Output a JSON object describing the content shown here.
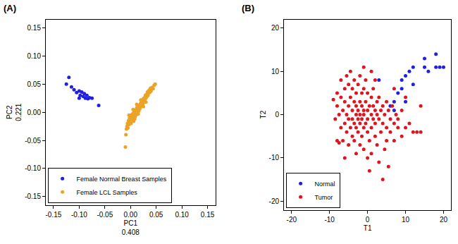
{
  "chart_data": [
    {
      "type": "scatter",
      "title": "(A)",
      "xlabel": "PC1\n0.408",
      "ylabel": "PC2\n0.221",
      "xlim": [
        -0.165,
        0.165
      ],
      "xticks": [
        -0.15,
        {
          "value": -0.1,
          "label": "-0.10"
        },
        -0.05,
        {
          "value": 0,
          "label": "0.00"
        },
        0.05,
        {
          "value": 0.1,
          "label": "0.10"
        },
        0.15
      ],
      "ylim": [
        -0.165,
        0.165
      ],
      "yticks": [
        -0.15,
        {
          "value": -0.1,
          "label": "-0.10"
        },
        -0.05,
        {
          "value": 0,
          "label": "0.00"
        },
        0.05,
        {
          "value": 0.1,
          "label": "0.10"
        },
        0.15
      ],
      "grid": false,
      "legend": "bottom left",
      "marker": "circle",
      "series": [
        {
          "name": "Female Normal Breast Samples",
          "color": "#1f1fe6",
          "values": [
            [
              -0.125,
              0.05
            ],
            [
              -0.12,
              0.062
            ],
            [
              -0.115,
              0.045
            ],
            [
              -0.11,
              0.04
            ],
            [
              -0.105,
              0.035
            ],
            [
              -0.1,
              0.038
            ],
            [
              -0.098,
              0.03
            ],
            [
              -0.095,
              0.036
            ],
            [
              -0.092,
              0.028
            ],
            [
              -0.09,
              0.033
            ],
            [
              -0.088,
              0.025
            ],
            [
              -0.085,
              0.03
            ],
            [
              -0.083,
              0.024
            ],
            [
              -0.08,
              0.026
            ],
            [
              -0.075,
              0.025
            ],
            [
              -0.062,
              0.012
            ],
            [
              -0.1,
              0.025
            ]
          ]
        },
        {
          "name": "Female LCL Samples",
          "color": "#e9a427",
          "values": [
            [
              -0.008,
              -0.03
            ],
            [
              -0.007,
              -0.025
            ],
            [
              -0.006,
              -0.02
            ],
            [
              -0.005,
              -0.028
            ],
            [
              -0.004,
              -0.015
            ],
            [
              -0.003,
              -0.022
            ],
            [
              -0.002,
              -0.01
            ],
            [
              -0.001,
              -0.018
            ],
            [
              0,
              -0.012
            ],
            [
              0,
              -0.005
            ],
            [
              0.001,
              -0.02
            ],
            [
              0.002,
              -0.008
            ],
            [
              0.003,
              -0.014
            ],
            [
              0.004,
              -0.003
            ],
            [
              0.005,
              -0.01
            ],
            [
              0.006,
              -0.001
            ],
            [
              0.006,
              -0.016
            ],
            [
              0.007,
              -0.006
            ],
            [
              0.008,
              0.002
            ],
            [
              0.009,
              -0.008
            ],
            [
              0.01,
              0.004
            ],
            [
              0.01,
              -0.002
            ],
            [
              0.011,
              0
            ],
            [
              0.012,
              0.008
            ],
            [
              0.013,
              -0.004
            ],
            [
              0.014,
              0.005
            ],
            [
              0.015,
              0.01
            ],
            [
              0.016,
              0.002
            ],
            [
              0.017,
              0.012
            ],
            [
              0.018,
              0.006
            ],
            [
              0.019,
              0.015
            ],
            [
              0.02,
              0.01
            ],
            [
              0.021,
              0.018
            ],
            [
              0.022,
              0.012
            ],
            [
              0.023,
              0.02
            ],
            [
              0.024,
              0.014
            ],
            [
              0.025,
              0.024
            ],
            [
              0.026,
              0.018
            ],
            [
              0.027,
              0.026
            ],
            [
              0.028,
              0.02
            ],
            [
              0.029,
              0.03
            ],
            [
              0.03,
              0.025
            ],
            [
              0.031,
              0.032
            ],
            [
              0.032,
              0.028
            ],
            [
              0.033,
              0.036
            ],
            [
              0.034,
              0.03
            ],
            [
              0.035,
              0.038
            ],
            [
              0.036,
              0.034
            ],
            [
              0.037,
              0.04
            ],
            [
              0.038,
              0.036
            ],
            [
              0.039,
              0.043
            ],
            [
              0.04,
              0.038
            ],
            [
              0.042,
              0.044
            ],
            [
              0.044,
              0.042
            ],
            [
              0.046,
              0.048
            ],
            [
              0.048,
              0.05
            ],
            [
              -0.01,
              -0.062
            ],
            [
              -0.009,
              -0.04
            ],
            [
              0.005,
              0.005
            ],
            [
              0.015,
              -0.003
            ],
            [
              0.02,
              0.022
            ],
            [
              0.03,
              0.018
            ],
            [
              -0.003,
              -0.005
            ],
            [
              0.008,
              -0.012
            ],
            [
              0.012,
              0.014
            ],
            [
              0.025,
              0.01
            ]
          ]
        }
      ]
    },
    {
      "type": "scatter",
      "title": "(B)",
      "xlabel": "T1",
      "ylabel": "T2",
      "xlim": [
        -22,
        22
      ],
      "xticks": [
        -20,
        -10,
        0,
        10,
        20
      ],
      "ylim": [
        -22,
        22
      ],
      "yticks": [
        -20,
        -10,
        0,
        10,
        20
      ],
      "grid": false,
      "legend": "bottom left",
      "marker": "circle",
      "series": [
        {
          "name": "Normal",
          "color": "#1f1fe6",
          "values": [
            [
              6,
              2
            ],
            [
              7,
              3
            ],
            [
              8,
              5
            ],
            [
              9,
              6
            ],
            [
              10,
              9
            ],
            [
              10,
              3
            ],
            [
              11,
              10
            ],
            [
              12,
              11
            ],
            [
              9,
              8
            ],
            [
              15,
              13
            ],
            [
              15,
              11
            ],
            [
              16,
              10
            ],
            [
              18,
              14
            ],
            [
              18,
              11
            ],
            [
              19,
              11
            ],
            [
              20,
              11
            ],
            [
              7,
              1
            ],
            [
              12,
              7
            ],
            [
              3,
              8
            ]
          ]
        },
        {
          "name": "Tumor",
          "color": "#e0141e",
          "values": [
            [
              -9,
              3.5
            ],
            [
              -8.5,
              -1
            ],
            [
              -8,
              5
            ],
            [
              -8,
              2
            ],
            [
              -7.5,
              -6.5
            ],
            [
              -7.5,
              0
            ],
            [
              -7,
              4
            ],
            [
              -7,
              -3
            ],
            [
              -7,
              8
            ],
            [
              -6.5,
              1
            ],
            [
              -6.5,
              -6
            ],
            [
              -6,
              6
            ],
            [
              -6,
              -2
            ],
            [
              -6,
              3
            ],
            [
              -5.5,
              9
            ],
            [
              -5.5,
              -4
            ],
            [
              -5.5,
              0
            ],
            [
              -5,
              2
            ],
            [
              -5,
              7
            ],
            [
              -5,
              -7
            ],
            [
              -5,
              -1
            ],
            [
              -4.5,
              4
            ],
            [
              -4.5,
              -3
            ],
            [
              -4.5,
              10
            ],
            [
              -4,
              1
            ],
            [
              -4,
              -5
            ],
            [
              -4,
              6
            ],
            [
              -4,
              -1
            ],
            [
              -3.5,
              3
            ],
            [
              -3.5,
              -2
            ],
            [
              -3.5,
              8
            ],
            [
              -3.5,
              -6
            ],
            [
              -3,
              0
            ],
            [
              -3,
              5
            ],
            [
              -3,
              -3
            ],
            [
              -3,
              2
            ],
            [
              -2.5,
              -1
            ],
            [
              -2.5,
              7
            ],
            [
              -2.5,
              -4
            ],
            [
              -2.5,
              1
            ],
            [
              -2,
              3
            ],
            [
              -2,
              -2
            ],
            [
              -2,
              9
            ],
            [
              -2,
              -7
            ],
            [
              -2,
              0
            ],
            [
              -1.5,
              5
            ],
            [
              -1.5,
              -1
            ],
            [
              -1.5,
              2
            ],
            [
              -1.5,
              -5
            ],
            [
              -1,
              1
            ],
            [
              -1,
              -3
            ],
            [
              -1,
              6
            ],
            [
              -1,
              -8
            ],
            [
              -1,
              0
            ],
            [
              -0.5,
              3
            ],
            [
              -0.5,
              -2
            ],
            [
              -0.5,
              8
            ],
            [
              0,
              1
            ],
            [
              0,
              -4
            ],
            [
              0,
              5
            ],
            [
              0,
              -1
            ],
            [
              0,
              -10
            ],
            [
              0.5,
              2
            ],
            [
              0.5,
              -6
            ],
            [
              0.5,
              -13
            ],
            [
              1,
              0
            ],
            [
              1,
              4
            ],
            [
              1,
              -3
            ],
            [
              1,
              -9
            ],
            [
              1.5,
              2
            ],
            [
              1.5,
              -1
            ],
            [
              1.5,
              6
            ],
            [
              2,
              -2
            ],
            [
              2,
              1
            ],
            [
              2,
              -5
            ],
            [
              2,
              8
            ],
            [
              2.5,
              0
            ],
            [
              2.5,
              -7
            ],
            [
              2.5,
              3
            ],
            [
              3,
              -1
            ],
            [
              3,
              4
            ],
            [
              3,
              -11
            ],
            [
              3.5,
              1
            ],
            [
              3.5,
              -4
            ],
            [
              4,
              -2
            ],
            [
              4,
              2
            ],
            [
              4,
              -15
            ],
            [
              4.5,
              -8
            ],
            [
              4.5,
              0
            ],
            [
              5,
              3
            ],
            [
              5,
              -3
            ],
            [
              5,
              -6
            ],
            [
              5.5,
              1
            ],
            [
              5.5,
              -12
            ],
            [
              6,
              -1
            ],
            [
              6,
              -4
            ],
            [
              6.5,
              2
            ],
            [
              7,
              -2
            ],
            [
              7,
              -6
            ],
            [
              7.5,
              0
            ],
            [
              8,
              -3
            ],
            [
              8,
              -1
            ],
            [
              9,
              1
            ],
            [
              9,
              -5
            ],
            [
              10,
              -3
            ],
            [
              10,
              4
            ],
            [
              11,
              -2
            ],
            [
              12,
              -4
            ],
            [
              13,
              -4
            ],
            [
              14,
              -4
            ],
            [
              14,
              2
            ],
            [
              -8,
              -6
            ],
            [
              -6,
              -10
            ],
            [
              -3,
              -9
            ],
            [
              1,
              10
            ],
            [
              -1,
              11
            ],
            [
              7,
              6
            ]
          ]
        }
      ]
    }
  ]
}
